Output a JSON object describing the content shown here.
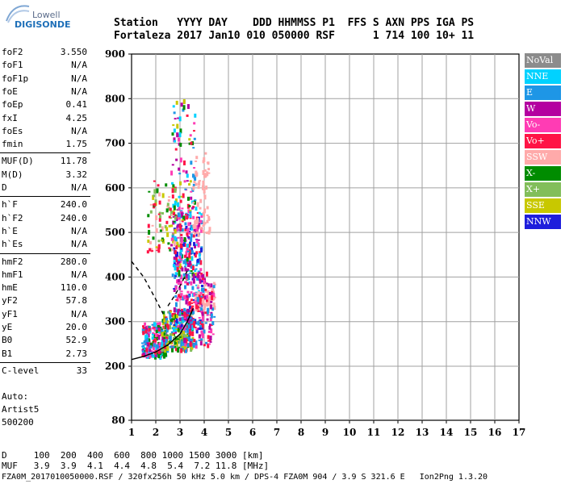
{
  "logo": {
    "line1": "Lowell",
    "line2": "DIGISONDE"
  },
  "header": {
    "line1": "Station   YYYY DAY    DDD HHMMSS P1  FFS S AXN PPS IGA PS",
    "line2": "Fortaleza 2017 Jan10 010 050000 RSF      1 714 100 10+ 11"
  },
  "params": {
    "group1": [
      {
        "name": "foF2",
        "value": "3.550"
      },
      {
        "name": "foF1",
        "value": "N/A"
      },
      {
        "name": "foF1p",
        "value": "N/A"
      },
      {
        "name": "foE",
        "value": "N/A"
      },
      {
        "name": "foEp",
        "value": "0.41"
      },
      {
        "name": "fxI",
        "value": "4.25"
      },
      {
        "name": "foEs",
        "value": "N/A"
      },
      {
        "name": "fmin",
        "value": "1.75"
      }
    ],
    "group2": [
      {
        "name": "MUF(D)",
        "value": "11.78"
      },
      {
        "name": "M(D)",
        "value": "3.32"
      },
      {
        "name": "D",
        "value": "N/A"
      }
    ],
    "group3": [
      {
        "name": "h`F",
        "value": "240.0"
      },
      {
        "name": "h`F2",
        "value": "240.0"
      },
      {
        "name": "h`E",
        "value": "N/A"
      },
      {
        "name": "h`Es",
        "value": "N/A"
      }
    ],
    "group4": [
      {
        "name": "hmF2",
        "value": "280.0"
      },
      {
        "name": "hmF1",
        "value": "N/A"
      },
      {
        "name": "hmE",
        "value": "110.0"
      },
      {
        "name": "yF2",
        "value": "57.8"
      },
      {
        "name": "yF1",
        "value": "N/A"
      },
      {
        "name": "yE",
        "value": "20.0"
      },
      {
        "name": "B0",
        "value": "52.9"
      },
      {
        "name": "B1",
        "value": "2.73"
      }
    ],
    "group5": [
      {
        "name": "C-level",
        "value": "33"
      }
    ]
  },
  "auto": {
    "line1": "Auto:",
    "line2": "Artist5",
    "line3": "500200"
  },
  "muf_table": {
    "line1": "D     100  200  400  600  800 1000 1500 3000 [km]",
    "line2": "MUF   3.9  3.9  4.1  4.4  4.8  5.4  7.2 11.8 [MHz]"
  },
  "footer": "FZA0M_2017010050000.RSF / 320fx256h 50 kHz 5.0 km / DPS-4 FZA0M 904 / 3.9 S 321.6 E   Ion2Png 1.3.20",
  "legend": [
    {
      "label": "NoVal",
      "color": "#8c8c8c"
    },
    {
      "label": "NNE",
      "color": "#00d2ff"
    },
    {
      "label": "E",
      "color": "#1e96e6"
    },
    {
      "label": "W",
      "color": "#b400a0"
    },
    {
      "label": "Vo-",
      "color": "#ff3cb4"
    },
    {
      "label": "Vo+",
      "color": "#ff1446"
    },
    {
      "label": "SSW",
      "color": "#ffaaaa"
    },
    {
      "label": "X-",
      "color": "#008c00"
    },
    {
      "label": "X+",
      "color": "#82be5a"
    },
    {
      "label": "SSE",
      "color": "#c8c800"
    },
    {
      "label": "NNW",
      "color": "#1e1edc"
    }
  ],
  "chart_data": {
    "type": "scatter",
    "x_ticks": [
      "1",
      "2",
      "3",
      "4",
      "5",
      "6",
      "7",
      "8",
      "9",
      "10",
      "11",
      "12",
      "13",
      "14",
      "15",
      "16",
      "17"
    ],
    "y_ticks": [
      "80",
      "200",
      "300",
      "400",
      "500",
      "600",
      "700",
      "800",
      "900"
    ],
    "xlim": [
      1,
      17
    ],
    "ylim_ticks": [
      200,
      300,
      400,
      500,
      600,
      700,
      800,
      900
    ],
    "grid": true,
    "legend_position": "right",
    "clusters": [
      {
        "x": [
          1.4,
          2.4
        ],
        "y": [
          225,
          300
        ],
        "count": 220,
        "colors": [
          "#ff1446",
          "#b400a0",
          "#1e96e6",
          "#008c00",
          "#ff3cb4",
          "#00d2ff"
        ]
      },
      {
        "x": [
          2.2,
          3.5
        ],
        "y": [
          240,
          330
        ],
        "count": 260,
        "colors": [
          "#008c00",
          "#c8c800",
          "#82be5a",
          "#ff1446",
          "#1e96e6"
        ]
      },
      {
        "x": [
          2.7,
          3.9
        ],
        "y": [
          280,
          560
        ],
        "count": 320,
        "colors": [
          "#ff1446",
          "#b400a0",
          "#1e96e6",
          "#ff3cb4",
          "#00d2ff",
          "#1e1edc"
        ]
      },
      {
        "x": [
          2.6,
          3.6
        ],
        "y": [
          400,
          800
        ],
        "count": 160,
        "colors": [
          "#b400a0",
          "#ff1446",
          "#00d2ff",
          "#1e96e6",
          "#ff3cb4",
          "#008c00",
          "#c8c800"
        ]
      },
      {
        "x": [
          3.5,
          4.2
        ],
        "y": [
          500,
          680
        ],
        "count": 70,
        "colors": [
          "#ffaaaa"
        ]
      },
      {
        "x": [
          3.6,
          4.4
        ],
        "y": [
          330,
          390
        ],
        "count": 60,
        "colors": [
          "#ffaaaa"
        ]
      },
      {
        "x": [
          1.6,
          2.8
        ],
        "y": [
          460,
          620
        ],
        "count": 80,
        "colors": [
          "#82be5a",
          "#008c00",
          "#c8c800",
          "#ffaaaa",
          "#ff1446"
        ]
      },
      {
        "x": [
          3.1,
          4.4
        ],
        "y": [
          250,
          420
        ],
        "count": 140,
        "colors": [
          "#b400a0",
          "#ff1446",
          "#1e96e6",
          "#ff3cb4"
        ]
      }
    ],
    "lines": [
      {
        "name": "",
        "color": "#000000",
        "dash": false,
        "points": [
          [
            1.0,
            215
          ],
          [
            1.5,
            222
          ],
          [
            2.0,
            232
          ],
          [
            2.5,
            248
          ],
          [
            3.0,
            272
          ],
          [
            3.3,
            300
          ],
          [
            3.55,
            330
          ]
        ]
      },
      {
        "name": "",
        "color": "#000000",
        "dash": true,
        "points": [
          [
            1.0,
            435
          ],
          [
            1.5,
            400
          ],
          [
            2.0,
            350
          ],
          [
            2.3,
            318
          ]
        ]
      },
      {
        "name": "",
        "color": "#000000",
        "dash": true,
        "points": [
          [
            2.5,
            335
          ],
          [
            2.8,
            360
          ],
          [
            3.1,
            390
          ],
          [
            3.35,
            420
          ]
        ]
      }
    ]
  }
}
